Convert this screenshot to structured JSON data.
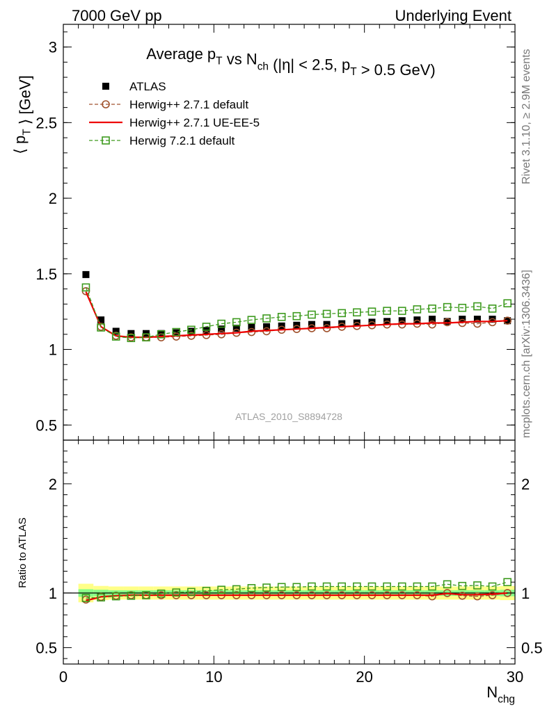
{
  "header": {
    "left": "7000 GeV pp",
    "right": "Underlying Event"
  },
  "side_labels": {
    "rivet": "Rivet 3.1.10, ≥ 2.9M events",
    "mcplots": "mcplots.cern.ch [arXiv:1306.3436]"
  },
  "chart_data": [
    {
      "type": "scatter",
      "title": "Average p_T vs N_ch (|η| < 2.5, p_T > 0.5 GeV)",
      "ylabel": "⟨ p_T ⟩ [GeV]",
      "xlabel": "",
      "xlim": [
        0,
        30
      ],
      "ylim": [
        0.4,
        3.15
      ],
      "yticks": [
        "0.5",
        "1",
        "1.5",
        "2",
        "2.5",
        "3"
      ],
      "grid": false,
      "legend_position": "top-left",
      "watermark": "ATLAS_2010_S8894728",
      "x": [
        1.5,
        2.5,
        3.5,
        4.5,
        5.5,
        6.5,
        7.5,
        8.5,
        9.5,
        10.5,
        11.5,
        12.5,
        13.5,
        14.5,
        15.5,
        16.5,
        17.5,
        18.5,
        19.5,
        20.5,
        21.5,
        22.5,
        23.5,
        24.5,
        25.5,
        26.5,
        27.5,
        28.5,
        29.5
      ],
      "series": [
        {
          "name": "ATLAS",
          "style": "data",
          "color": "#000000",
          "values": [
            1.495,
            1.195,
            1.12,
            1.105,
            1.105,
            1.105,
            1.11,
            1.12,
            1.125,
            1.135,
            1.14,
            1.145,
            1.15,
            1.155,
            1.16,
            1.165,
            1.165,
            1.17,
            1.175,
            1.18,
            1.185,
            1.19,
            1.195,
            1.2,
            1.185,
            1.2,
            1.2,
            1.2,
            1.19
          ]
        },
        {
          "name": "Herwig++ 2.7.1 default",
          "style": "circle-dashed",
          "color": "#a0522d",
          "values": [
            1.385,
            1.15,
            1.09,
            1.08,
            1.08,
            1.08,
            1.085,
            1.09,
            1.095,
            1.1,
            1.11,
            1.115,
            1.12,
            1.13,
            1.135,
            1.14,
            1.14,
            1.15,
            1.155,
            1.16,
            1.165,
            1.165,
            1.17,
            1.165,
            1.18,
            1.175,
            1.17,
            1.18,
            1.19
          ]
        },
        {
          "name": "Herwig++ 2.7.1 UE-EE-5",
          "style": "solid",
          "color": "#ee0000",
          "values": [
            1.38,
            1.15,
            1.09,
            1.08,
            1.08,
            1.085,
            1.09,
            1.095,
            1.1,
            1.105,
            1.11,
            1.12,
            1.125,
            1.13,
            1.135,
            1.14,
            1.145,
            1.15,
            1.155,
            1.16,
            1.165,
            1.17,
            1.17,
            1.175,
            1.175,
            1.18,
            1.185,
            1.185,
            1.19
          ]
        },
        {
          "name": "Herwig 7.2.1 default",
          "style": "square-dashed",
          "color": "#3d9a1e",
          "values": [
            1.41,
            1.145,
            1.085,
            1.075,
            1.08,
            1.1,
            1.115,
            1.13,
            1.15,
            1.17,
            1.18,
            1.195,
            1.205,
            1.215,
            1.22,
            1.23,
            1.235,
            1.24,
            1.245,
            1.25,
            1.255,
            1.255,
            1.265,
            1.27,
            1.28,
            1.275,
            1.285,
            1.27,
            1.305
          ]
        }
      ]
    },
    {
      "type": "scatter",
      "ylabel": "Ratio to ATLAS",
      "xlabel": "N_chg",
      "xlim": [
        0,
        30
      ],
      "ylim": [
        0.35,
        2.4
      ],
      "xticks": [
        "0",
        "10",
        "20",
        "30"
      ],
      "yticks": [
        "0.5",
        "1",
        "2"
      ],
      "reference_line": 1,
      "band_colors": {
        "outer": "#ffff88",
        "inner": "#88ff88"
      },
      "band_edges": [
        1,
        2,
        3,
        4,
        5,
        6,
        7,
        8,
        9,
        10,
        11,
        12,
        13,
        14,
        15,
        16,
        17,
        18,
        19,
        20,
        21,
        22,
        23,
        24,
        25,
        26,
        27,
        28,
        29,
        30
      ],
      "band_outer": [
        0.085,
        0.065,
        0.06,
        0.06,
        0.06,
        0.06,
        0.06,
        0.06,
        0.06,
        0.06,
        0.06,
        0.06,
        0.06,
        0.06,
        0.06,
        0.06,
        0.06,
        0.06,
        0.06,
        0.06,
        0.06,
        0.06,
        0.06,
        0.06,
        0.06,
        0.06,
        0.06,
        0.06,
        0.065
      ],
      "band_inner": [
        0.035,
        0.03,
        0.025,
        0.025,
        0.025,
        0.025,
        0.025,
        0.025,
        0.025,
        0.025,
        0.025,
        0.025,
        0.025,
        0.025,
        0.025,
        0.025,
        0.025,
        0.025,
        0.025,
        0.025,
        0.025,
        0.025,
        0.025,
        0.025,
        0.025,
        0.025,
        0.025,
        0.025,
        0.03
      ],
      "x": [
        1.5,
        2.5,
        3.5,
        4.5,
        5.5,
        6.5,
        7.5,
        8.5,
        9.5,
        10.5,
        11.5,
        12.5,
        13.5,
        14.5,
        15.5,
        16.5,
        17.5,
        18.5,
        19.5,
        20.5,
        21.5,
        22.5,
        23.5,
        24.5,
        25.5,
        26.5,
        27.5,
        28.5,
        29.5
      ],
      "series": [
        {
          "name": "Herwig++ 2.7.1 default",
          "style": "circle-dashed",
          "color": "#a0522d",
          "values": [
            0.94,
            0.965,
            0.975,
            0.98,
            0.98,
            0.98,
            0.98,
            0.98,
            0.98,
            0.98,
            0.98,
            0.98,
            0.98,
            0.98,
            0.98,
            0.98,
            0.98,
            0.98,
            0.98,
            0.98,
            0.98,
            0.98,
            0.98,
            0.97,
            1.0,
            0.975,
            0.97,
            0.98,
            1.0
          ]
        },
        {
          "name": "Herwig++ 2.7.1 UE-EE-5",
          "style": "solid",
          "color": "#ee0000",
          "values": [
            0.93,
            0.965,
            0.975,
            0.98,
            0.98,
            0.98,
            0.98,
            0.98,
            0.98,
            0.98,
            0.98,
            0.98,
            0.98,
            0.98,
            0.98,
            0.98,
            0.98,
            0.98,
            0.98,
            0.98,
            0.98,
            0.98,
            0.98,
            0.98,
            0.995,
            0.985,
            0.985,
            0.99,
            1.0
          ]
        },
        {
          "name": "Herwig 7.2.1 default",
          "style": "square-dashed",
          "color": "#3d9a1e",
          "values": [
            0.955,
            0.96,
            0.97,
            0.975,
            0.98,
            0.995,
            1.005,
            1.01,
            1.02,
            1.03,
            1.035,
            1.045,
            1.05,
            1.055,
            1.055,
            1.06,
            1.06,
            1.06,
            1.06,
            1.06,
            1.06,
            1.06,
            1.06,
            1.06,
            1.08,
            1.065,
            1.07,
            1.06,
            1.1
          ]
        }
      ]
    }
  ]
}
